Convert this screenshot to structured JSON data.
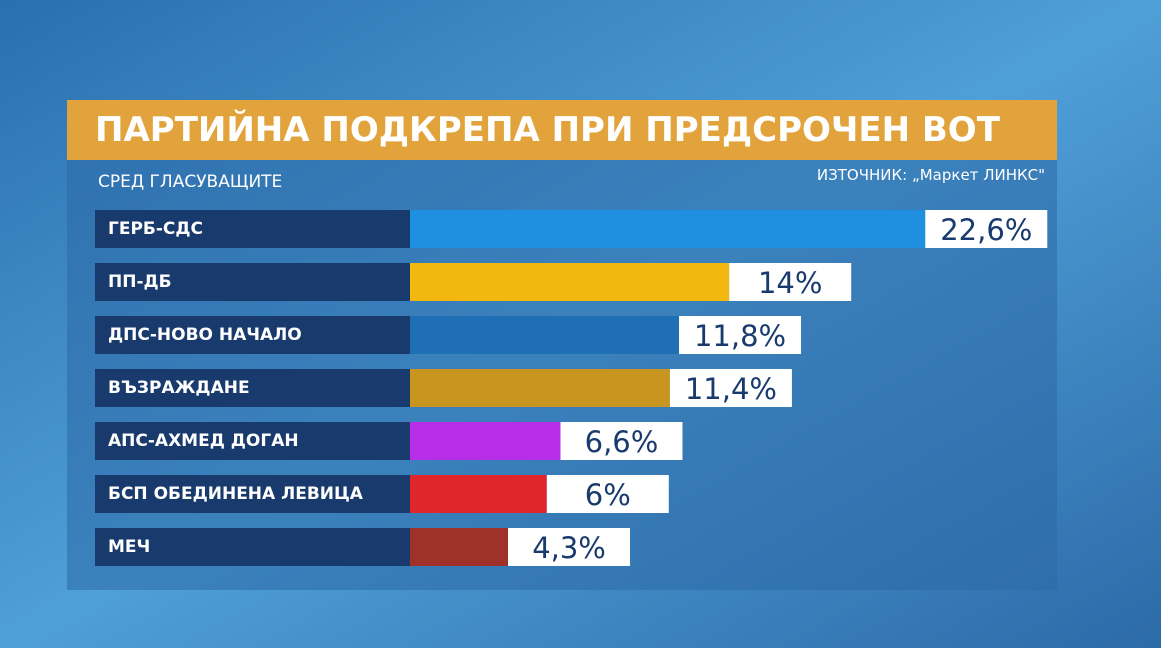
{
  "chart_data": {
    "type": "bar",
    "orientation": "horizontal",
    "title": "ПАРТИЙНА ПОДКРЕПА ПРИ ПРЕДСРОЧЕН ВОТ",
    "subtitle": "СРЕД ГЛАСУВАЩИТЕ",
    "source": "ИЗТОЧНИК: „Маркет ЛИНКС\"",
    "categories": [
      "ГЕРБ-СДС",
      "ПП-ДБ",
      "ДПС-НОВО НАЧАЛО",
      "ВЪЗРАЖДАНЕ",
      "АПС-АХМЕД ДОГАН",
      "БСП ОБЕДИНЕНА ЛЕВИЦА",
      "МЕЧ"
    ],
    "values": [
      22.6,
      14,
      11.8,
      11.4,
      6.6,
      6,
      4.3
    ],
    "value_labels": [
      "22,6%",
      "14%",
      "11,8%",
      "11,4%",
      "6,6%",
      "6%",
      "4,3%"
    ],
    "colors": [
      "#1f8fe0",
      "#f2b80f",
      "#1f6fb5",
      "#c8961e",
      "#b62ee8",
      "#e0262a",
      "#a0302a"
    ]
  }
}
